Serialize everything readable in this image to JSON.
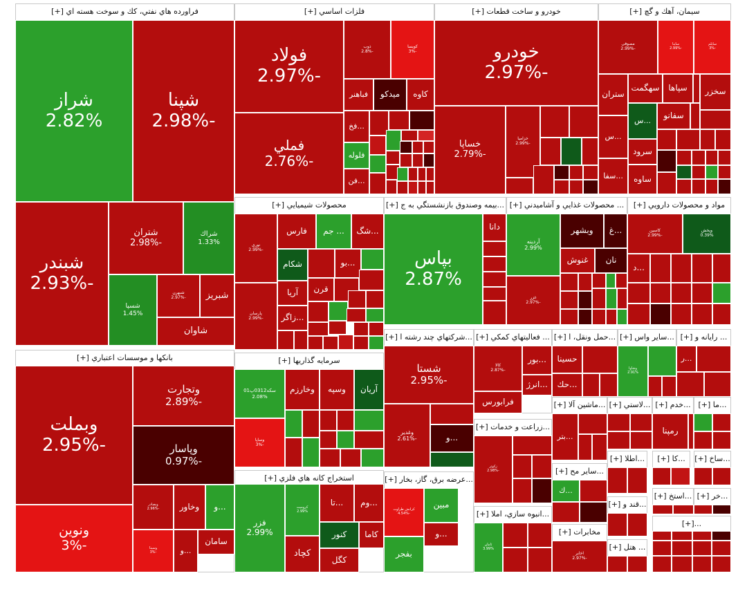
{
  "colors": {
    "pos_strong": "#2ca02c",
    "pos_mid": "#238e23",
    "pos_dark": "#0f5a1a",
    "neg_strong": "#b30d0d",
    "neg_mid": "#c21414",
    "neg_bright": "#e41414",
    "neg_light": "#d42424",
    "neg_dark": "#4a0000",
    "neg_darker": "#5e0a0a"
  },
  "sectors": [
    {
      "id": "s1",
      "title": "فراورده هاي نفتي، كك و سوخت هسته اي [+]"
    },
    {
      "id": "s2",
      "title": "فلزات اساسي [+]"
    },
    {
      "id": "s3",
      "title": "خودرو و ساخت قطعات [+]"
    },
    {
      "id": "s4",
      "title": "سيمان، آهك و گچ [+]"
    },
    {
      "id": "s5",
      "title": "بانكها و موسسات اعتباري [+]"
    },
    {
      "id": "s6",
      "title": "محصولات شيميايي [+]"
    },
    {
      "id": "s7",
      "title": "...بيمه وصندوق بازنشستگي به ج [+]"
    },
    {
      "id": "s8",
      "title": "... محصولات غذايي و آشاميدني [+]"
    },
    {
      "id": "s9",
      "title": "مواد و محصولات دارويي [+]"
    },
    {
      "id": "s10",
      "title": "سرمايه گذاريها [+]"
    },
    {
      "id": "s11",
      "title": "...شركتهاي چند رشته ا [+]"
    },
    {
      "id": "s12",
      "title": "... فعاليتهاي كمكي [+]"
    },
    {
      "id": "s13",
      "title": "...حمل ونقل، ا [+]"
    },
    {
      "id": "s14",
      "title": "...ساير واس [+]"
    },
    {
      "id": "s15",
      "title": "... رايانه و [+]"
    },
    {
      "id": "s16",
      "title": "استخراج كانه هاي فلزي [+]"
    },
    {
      "id": "s17",
      "title": "...عرضه برق، گاز، بخار [+]"
    },
    {
      "id": "s18",
      "title": "...زراعت و خدمات [+]"
    },
    {
      "id": "s19",
      "title": "...ماشين آلا [+]"
    },
    {
      "id": "s20",
      "title": "...لاستي [+]"
    },
    {
      "id": "s21",
      "title": "...خدم [+]"
    },
    {
      "id": "s22",
      "title": "...ما [+]"
    },
    {
      "id": "s23",
      "title": "...انبوه سازي، املا [+]"
    },
    {
      "id": "s24",
      "title": "...ساير مح [+]"
    },
    {
      "id": "s25",
      "title": "...اطلا [+]"
    },
    {
      "id": "s26",
      "title": "...كا [+]"
    },
    {
      "id": "s27",
      "title": "...ساخ [+]"
    },
    {
      "id": "s28",
      "title": "...قند و [+]"
    },
    {
      "id": "s29",
      "title": "...استخ [+]"
    },
    {
      "id": "s30",
      "title": "...خر [+]"
    },
    {
      "id": "s31",
      "title": "مخابرات [+]"
    },
    {
      "id": "s32",
      "title": "... هتل [+]"
    },
    {
      "id": "s33",
      "title": "...[+]"
    }
  ],
  "tiles": [
    {
      "name": "شراز",
      "pct": "2.82%",
      "c": "pos_strong"
    },
    {
      "name": "شپنا",
      "pct": "-2.98%",
      "c": "neg_strong"
    },
    {
      "name": "شبندر",
      "pct": "-2.93%",
      "c": "neg_strong"
    },
    {
      "name": "شتران",
      "pct": "-2.98%",
      "c": "neg_strong"
    },
    {
      "name": "شراك",
      "pct": "1.33%",
      "c": "pos_mid"
    },
    {
      "name": "شسپا",
      "pct": "1.45%",
      "c": "pos_mid"
    },
    {
      "name": "شبهرن",
      "pct": "-2.97%",
      "c": "neg_strong"
    },
    {
      "name": "شبريز",
      "pct": "",
      "c": "neg_strong"
    },
    {
      "name": "شاوان",
      "pct": "",
      "c": "neg_strong"
    },
    {
      "name": "فولاد",
      "pct": "-2.97%",
      "c": "neg_strong"
    },
    {
      "name": "فملي",
      "pct": "-2.76%",
      "c": "neg_strong"
    },
    {
      "name": "ذوب",
      "pct": "-2.8%",
      "c": "neg_strong"
    },
    {
      "name": "كويسا",
      "pct": "-3%",
      "c": "neg_bright"
    },
    {
      "name": "فباهنر",
      "pct": "",
      "c": "neg_strong"
    },
    {
      "name": "ميدكو",
      "pct": "",
      "c": "neg_dark"
    },
    {
      "name": "كاوه",
      "pct": "",
      "c": "neg_strong"
    },
    {
      "name": "...فخ",
      "pct": "",
      "c": "neg_strong"
    },
    {
      "name": "فلوله",
      "pct": "",
      "c": "pos_strong"
    },
    {
      "name": "...فن",
      "pct": "",
      "c": "neg_strong"
    },
    {
      "name": "خودرو",
      "pct": "-2.97%",
      "c": "neg_strong"
    },
    {
      "name": "خساپا",
      "pct": "-2.79%",
      "c": "neg_strong"
    },
    {
      "name": "خزامیا",
      "pct": "-2.99%",
      "c": "neg_strong"
    },
    {
      "name": "مصوفی",
      "pct": "-2.99%",
      "c": "neg_strong"
    },
    {
      "name": "ساینا",
      "pct": "-2.99%",
      "c": "neg_bright"
    },
    {
      "name": "سايلم",
      "pct": "-3%",
      "c": "neg_bright"
    },
    {
      "name": "ستران",
      "pct": "",
      "c": "neg_strong"
    },
    {
      "name": "سهگمت",
      "pct": "",
      "c": "neg_strong"
    },
    {
      "name": "سپاها",
      "pct": "",
      "c": "neg_strong"
    },
    {
      "name": "سخزر",
      "pct": "",
      "c": "neg_strong"
    },
    {
      "name": "...س",
      "pct": "",
      "c": "pos_dark"
    },
    {
      "name": "سفانو",
      "pct": "",
      "c": "neg_strong"
    },
    {
      "name": "...س",
      "pct": "",
      "c": "neg_strong"
    },
    {
      "name": "سرود",
      "pct": "",
      "c": "neg_strong"
    },
    {
      "name": "...سفا",
      "pct": "",
      "c": "neg_strong"
    },
    {
      "name": "ساوه",
      "pct": "",
      "c": "neg_strong"
    },
    {
      "name": "وبملت",
      "pct": "-2.95%",
      "c": "neg_strong"
    },
    {
      "name": "وتجارت",
      "pct": "-2.89%",
      "c": "neg_strong"
    },
    {
      "name": "وپاسار",
      "pct": "-0.97%",
      "c": "neg_dark"
    },
    {
      "name": "ونوين",
      "pct": "-3%",
      "c": "neg_bright"
    },
    {
      "name": "وخاور",
      "pct": "",
      "c": "neg_strong"
    },
    {
      "name": "...و",
      "pct": "",
      "c": "pos_strong"
    },
    {
      "name": "سامان",
      "pct": "",
      "c": "neg_strong"
    },
    {
      "name": "...و",
      "pct": "",
      "c": "neg_strong"
    },
    {
      "name": "وبصادر",
      "pct": "-2.96%",
      "c": "neg_strong"
    },
    {
      "name": "وسينا",
      "pct": "-3%",
      "c": "neg_bright"
    },
    {
      "name": "نوري",
      "pct": "-2.99%",
      "c": "neg_strong"
    },
    {
      "name": "فارس",
      "pct": "",
      "c": "neg_strong"
    },
    {
      "name": "... جم",
      "pct": "",
      "c": "pos_strong"
    },
    {
      "name": "...شگ",
      "pct": "",
      "c": "neg_strong"
    },
    {
      "name": "شكام",
      "pct": "",
      "c": "pos_dark"
    },
    {
      "name": "...بو",
      "pct": "",
      "c": "neg_strong"
    },
    {
      "name": "قرن",
      "pct": "",
      "c": "neg_strong"
    },
    {
      "name": "آريا",
      "pct": "",
      "c": "neg_strong"
    },
    {
      "name": "پارسان",
      "pct": "-2.99%",
      "c": "neg_strong"
    },
    {
      "name": "...زاگر",
      "pct": "",
      "c": "neg_strong"
    },
    {
      "name": "بپاس",
      "pct": "2.87%",
      "c": "pos_strong"
    },
    {
      "name": "دانا",
      "pct": "",
      "c": "neg_strong"
    },
    {
      "name": "آردينه",
      "pct": "2.99%",
      "c": "pos_strong"
    },
    {
      "name": "وبشهر",
      "pct": "",
      "c": "neg_dark"
    },
    {
      "name": "...غ",
      "pct": "",
      "c": "neg_dark"
    },
    {
      "name": "غنوش",
      "pct": "",
      "c": "neg_strong"
    },
    {
      "name": "نان",
      "pct": "",
      "c": "neg_dark"
    },
    {
      "name": "غزر",
      "pct": "-2.97%",
      "c": "neg_strong"
    },
    {
      "name": "كاسين",
      "pct": "-2.99%",
      "c": "neg_strong"
    },
    {
      "name": "وپخش",
      "pct": "0.39%",
      "c": "pos_dark"
    },
    {
      "name": "...د",
      "pct": "",
      "c": "neg_strong"
    },
    {
      "name": "سكه0312پ01",
      "pct": "2.08%",
      "c": "pos_strong"
    },
    {
      "name": "وخارزم",
      "pct": "",
      "c": "neg_strong"
    },
    {
      "name": "وسپه",
      "pct": "",
      "c": "neg_strong"
    },
    {
      "name": "آريان",
      "pct": "",
      "c": "pos_dark"
    },
    {
      "name": "وساپا",
      "pct": "-3%",
      "c": "neg_bright"
    },
    {
      "name": "شستا",
      "pct": "-2.95%",
      "c": "neg_strong"
    },
    {
      "name": "وغدير",
      "pct": "-2.61%",
      "c": "neg_strong"
    },
    {
      "name": "...و",
      "pct": "",
      "c": "neg_dark"
    },
    {
      "name": "كالا",
      "pct": "-2.87%",
      "c": "neg_strong"
    },
    {
      "name": "...بور",
      "pct": "",
      "c": "neg_strong"
    },
    {
      "name": "...انرژ",
      "pct": "",
      "c": "neg_strong"
    },
    {
      "name": "فرابورس",
      "pct": "",
      "c": "neg_strong"
    },
    {
      "name": "حسينا",
      "pct": "",
      "c": "neg_strong"
    },
    {
      "name": "...حك",
      "pct": "",
      "c": "neg_strong"
    },
    {
      "name": "وشاوا",
      "pct": "2.91%",
      "c": "pos_strong"
    },
    {
      "name": "...ر",
      "pct": "",
      "c": "neg_strong"
    },
    {
      "name": "فزر",
      "pct": "2.99%",
      "c": "pos_strong"
    },
    {
      "name": "كروميت",
      "pct": "2.99%",
      "c": "pos_strong"
    },
    {
      "name": "...تا",
      "pct": "",
      "c": "neg_strong"
    },
    {
      "name": "...وم",
      "pct": "",
      "c": "neg_strong"
    },
    {
      "name": "كنور",
      "pct": "",
      "c": "pos_dark"
    },
    {
      "name": "كاما",
      "pct": "",
      "c": "neg_strong"
    },
    {
      "name": "كچاد",
      "pct": "",
      "c": "neg_strong"
    },
    {
      "name": "كگل",
      "pct": "",
      "c": "neg_strong"
    },
    {
      "name": "كرانش طراوت",
      "pct": "-4.54%",
      "c": "neg_bright"
    },
    {
      "name": "مبين",
      "pct": "",
      "c": "pos_strong"
    },
    {
      "name": "...و",
      "pct": "",
      "c": "neg_strong"
    },
    {
      "name": "بفجر",
      "pct": "",
      "c": "pos_strong"
    },
    {
      "name": "زكوثر",
      "pct": "-2.98%",
      "c": "neg_strong"
    },
    {
      "name": "...بتر",
      "pct": "",
      "c": "neg_strong"
    },
    {
      "name": "رمپنا",
      "pct": "",
      "c": "neg_strong"
    },
    {
      "name": "ثامان",
      "pct": "3.99%",
      "c": "pos_strong"
    },
    {
      "name": "...ك",
      "pct": "",
      "c": "pos_strong"
    },
    {
      "name": "اخابر",
      "pct": "-2.97%",
      "c": "neg_strong"
    }
  ]
}
